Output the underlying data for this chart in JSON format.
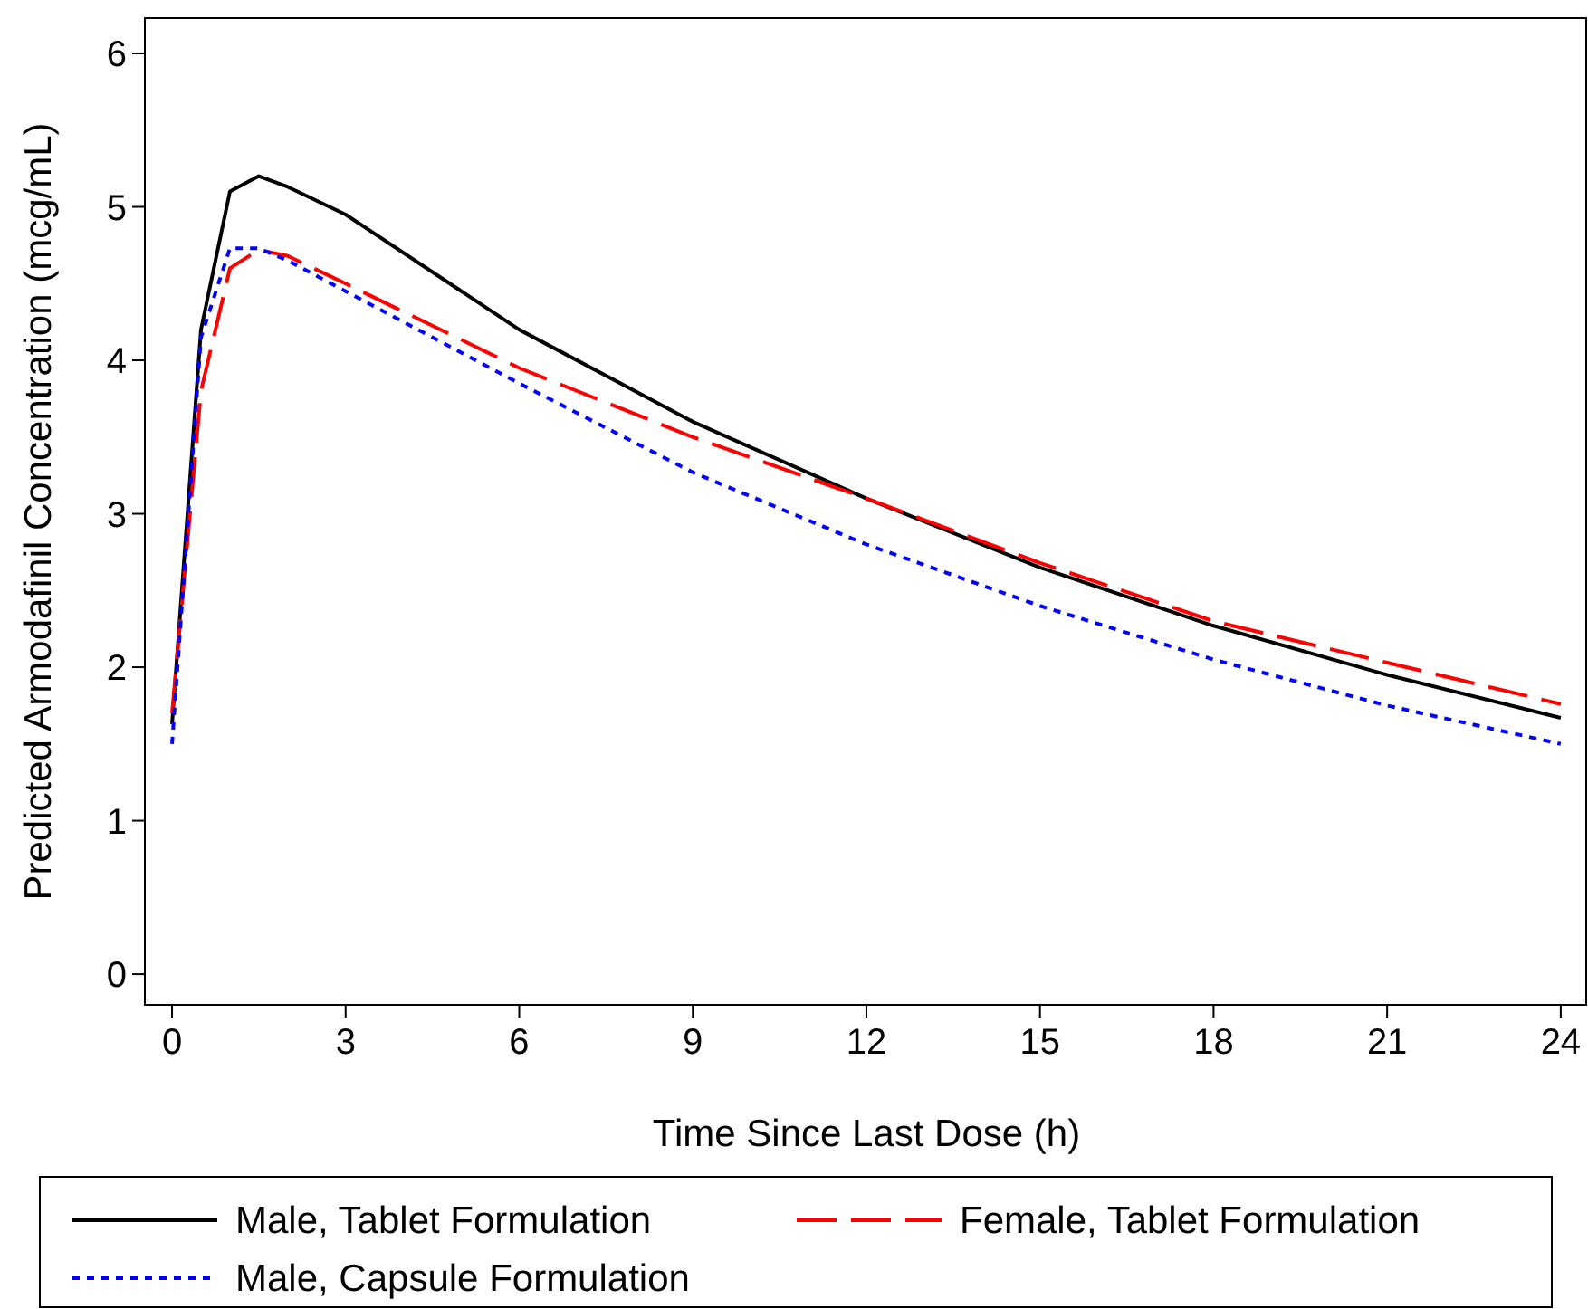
{
  "chart_data": {
    "type": "line",
    "xlabel": "Time Since Last Dose (h)",
    "ylabel": "Predicted Armodafinil Concentration (mcg/mL)",
    "xlim": [
      -0.47,
      24.44
    ],
    "ylim": [
      -0.2,
      6.23
    ],
    "xticks": [
      0,
      3,
      6,
      9,
      12,
      15,
      18,
      21,
      24
    ],
    "yticks": [
      0,
      1,
      2,
      3,
      4,
      5,
      6
    ],
    "legend": "bottom",
    "grid": false,
    "series": [
      {
        "name": "Male, Tablet Formulation",
        "color": "#000000",
        "line_style": "solid",
        "x": [
          0,
          0.5,
          1,
          1.5,
          2,
          3,
          6,
          9,
          12,
          15,
          18,
          21,
          24
        ],
        "values": [
          1.63,
          4.2,
          5.1,
          5.2,
          5.13,
          4.95,
          4.2,
          3.6,
          3.1,
          2.65,
          2.27,
          1.95,
          1.67
        ]
      },
      {
        "name": "Female, Tablet Formulation",
        "color": "#ff0000",
        "line_style": "dashed",
        "x": [
          0,
          0.5,
          1,
          1.5,
          2,
          3,
          6,
          9,
          12,
          15,
          18,
          21,
          24
        ],
        "values": [
          1.7,
          3.8,
          4.6,
          4.72,
          4.68,
          4.5,
          3.95,
          3.5,
          3.1,
          2.68,
          2.3,
          2.03,
          1.76
        ]
      },
      {
        "name": "Male, Capsule Formulation",
        "color": "#0000ff",
        "line_style": "dotted",
        "x": [
          0,
          0.5,
          1,
          1.5,
          2,
          3,
          6,
          9,
          12,
          15,
          18,
          21,
          24
        ],
        "values": [
          1.5,
          4.15,
          4.73,
          4.73,
          4.65,
          4.45,
          3.85,
          3.27,
          2.8,
          2.4,
          2.05,
          1.75,
          1.5
        ]
      }
    ]
  }
}
